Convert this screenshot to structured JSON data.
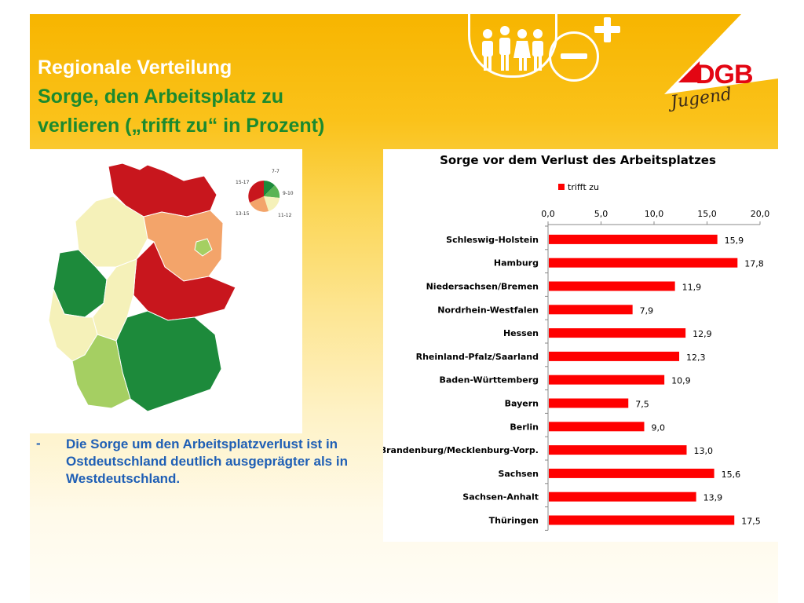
{
  "slide": {
    "title_line1": "Regionale Verteilung",
    "title_line2": "Sorge, den Arbeitsplatz zu",
    "title_line3": "verlieren („trifft zu“ in Prozent)",
    "bullet_marker": "-",
    "bullet_text": "Die Sorge um den Arbeitsplatzverlust ist in Ostdeutschland deutlich ausgeprägter als in Westdeutschland."
  },
  "logo": {
    "brand": "DGB",
    "sub": "Jugend",
    "brand_color": "#e30613"
  },
  "map_legend": {
    "labels": [
      "15-17",
      "7-7",
      "9-10",
      "11-12",
      "13-15"
    ],
    "colors": [
      "#c8161d",
      "#1d8a3b",
      "#5bb454",
      "#f5f1b9",
      "#f3a46a"
    ]
  },
  "chart_data": {
    "type": "bar",
    "orientation": "horizontal",
    "title": "Sorge vor dem Verlust des Arbeitsplatzes",
    "categories": [
      "Schleswig-Holstein",
      "Hamburg",
      "Niedersachsen/Bremen",
      "Nordrhein-Westfalen",
      "Hessen",
      "Rheinland-Pfalz/Saarland",
      "Baden-Württemberg",
      "Bayern",
      "Berlin",
      "Brandenburg/Mecklenburg-Vorp.",
      "Sachsen",
      "Sachsen-Anhalt",
      "Thüringen"
    ],
    "series": [
      {
        "name": "trifft zu",
        "values": [
          15.9,
          17.8,
          11.9,
          7.9,
          12.9,
          12.3,
          10.9,
          7.5,
          9.0,
          13.0,
          15.6,
          13.9,
          17.5
        ],
        "labels": [
          "15,9",
          "17,8",
          "11,9",
          "7,9",
          "12,9",
          "12,3",
          "10,9",
          "7,5",
          "9,0",
          "13,0",
          "15,6",
          "13,9",
          "17,5"
        ],
        "color": "#ff0000"
      }
    ],
    "xlim": [
      0,
      20
    ],
    "ticks": [
      0,
      5,
      10,
      15,
      20
    ],
    "tick_labels": [
      "0,0",
      "5,0",
      "10,0",
      "15,0",
      "20,0"
    ],
    "axis_position": "top",
    "legend_position": "top-left",
    "grid": false
  }
}
